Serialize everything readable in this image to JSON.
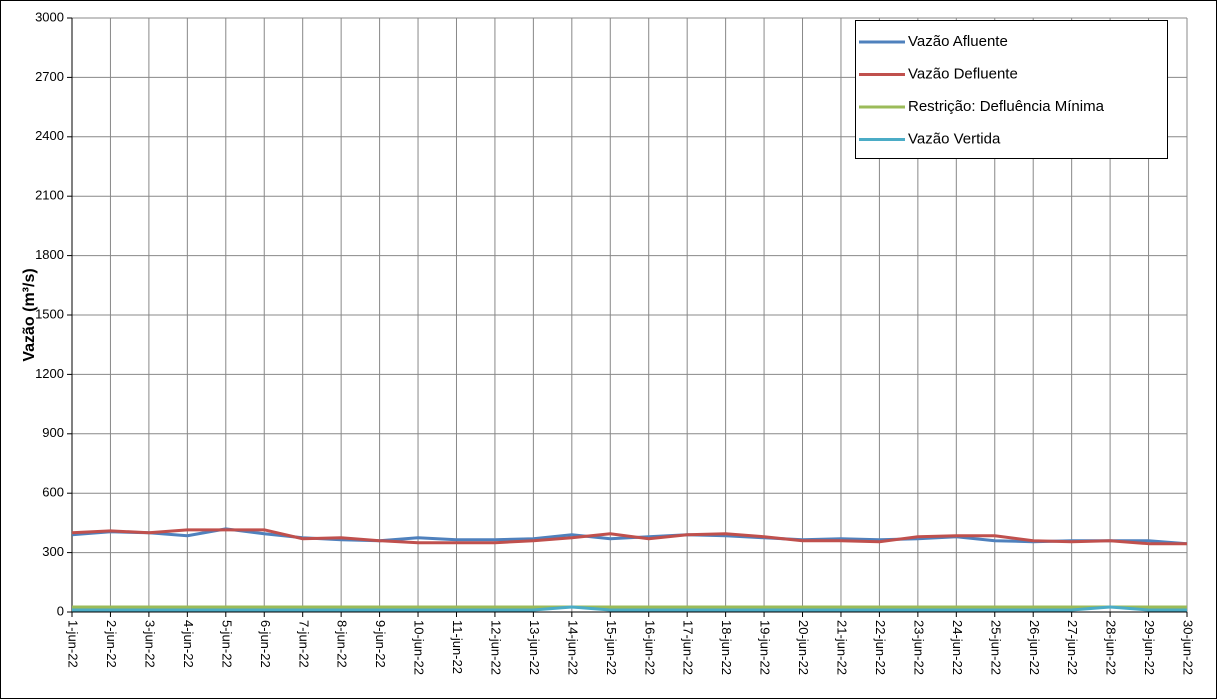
{
  "chart_data": {
    "type": "line",
    "y_label": "Vazão (m³/s)",
    "categories": [
      "1-jun-22",
      "2-jun-22",
      "3-jun-22",
      "4-jun-22",
      "5-jun-22",
      "6-jun-22",
      "7-jun-22",
      "8-jun-22",
      "9-jun-22",
      "10-jun-22",
      "11-jun-22",
      "12-jun-22",
      "13-jun-22",
      "14-jun-22",
      "15-jun-22",
      "16-jun-22",
      "17-jun-22",
      "18-jun-22",
      "19-jun-22",
      "20-jun-22",
      "21-jun-22",
      "22-jun-22",
      "23-jun-22",
      "24-jun-22",
      "25-jun-22",
      "26-jun-22",
      "27-jun-22",
      "28-jun-22",
      "29-jun-22",
      "30-jun-22"
    ],
    "series": [
      {
        "name": "Vazão Afluente",
        "color": "#4f81bd",
        "values": [
          390,
          405,
          400,
          385,
          420,
          395,
          375,
          365,
          360,
          375,
          365,
          365,
          370,
          390,
          370,
          380,
          390,
          385,
          375,
          365,
          370,
          365,
          370,
          380,
          360,
          355,
          360,
          360,
          360,
          345
        ]
      },
      {
        "name": "Vazão Defluente",
        "color": "#c0504d",
        "values": [
          400,
          410,
          400,
          415,
          415,
          415,
          370,
          375,
          360,
          350,
          350,
          350,
          360,
          375,
          395,
          370,
          390,
          395,
          380,
          360,
          360,
          355,
          380,
          385,
          385,
          360,
          355,
          360,
          345,
          345
        ]
      },
      {
        "name": "Restrição: Defluência Mínima",
        "color": "#9bbb59",
        "values": [
          25,
          25,
          25,
          25,
          25,
          25,
          25,
          25,
          25,
          25,
          25,
          25,
          25,
          25,
          25,
          25,
          25,
          25,
          25,
          25,
          25,
          25,
          25,
          25,
          25,
          25,
          25,
          25,
          25,
          25
        ]
      },
      {
        "name": "Vazão Vertida",
        "color": "#4bacc6",
        "values": [
          10,
          10,
          10,
          10,
          10,
          10,
          10,
          10,
          10,
          10,
          10,
          10,
          10,
          25,
          10,
          10,
          10,
          10,
          10,
          10,
          10,
          10,
          10,
          10,
          10,
          10,
          10,
          25,
          10,
          10
        ]
      }
    ],
    "ylim": [
      0,
      3000
    ],
    "yticks": [
      0,
      300,
      600,
      900,
      1200,
      1500,
      1800,
      2100,
      2400,
      2700,
      3000
    ],
    "grid": true,
    "legend": "top-right"
  }
}
